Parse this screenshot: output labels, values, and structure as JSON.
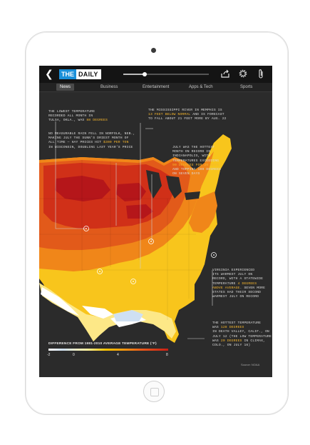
{
  "header": {
    "logo_the": "THE",
    "logo_daily": "DAILY",
    "progress": 0.25
  },
  "nav": {
    "tabs": [
      {
        "label": "News",
        "active": true
      },
      {
        "label": "Business",
        "active": false
      },
      {
        "label": "Entertainment",
        "active": false
      },
      {
        "label": "Apps & Tech",
        "active": false
      },
      {
        "label": "Sports",
        "active": false
      }
    ]
  },
  "icons": {
    "back": "back-arrow-icon",
    "share": "share-icon",
    "settings": "gear-icon",
    "clip": "paperclip-icon",
    "home": "home-button-icon"
  },
  "annotations": {
    "tulsa": {
      "lines": [
        "THE LOWEST TEMPERATURE",
        "RECORDED ALL MONTH IN",
        "TULSA, OKLA., WAS "
      ],
      "highlight": "88 DEGREES"
    },
    "norfolk": {
      "lines": [
        "NO MEASURABLE RAIN FELL IN NORFOLK, NEB.,",
        "MAKING JULY THE SUNN'S DRIEST MONTH OF",
        "ALL TIME — HAY PRICES HIT "
      ],
      "highlight": "$300 PER TON",
      "tail": "IN WISCONSIN, DOUBLING LAST YEAR'S PRICE"
    },
    "mississippi": {
      "lines": [
        "THE MISSISSIPPI RIVER IN MEMPHIS IS"
      ],
      "highlight": "13 FEET BELOW NORMAL",
      "tail_lines": [
        " AND IS FORECAST",
        "TO FALL ABOUT 21 FEET MORE BY AUG. 22"
      ]
    },
    "indianapolis": {
      "lines": [
        "JULY WAS THE HOTTEST",
        "MONTH ON RECORD IN",
        "INDIANAPOLIS, WITH",
        "TEMPERATURES EXCEEDING"
      ],
      "highlight": "90 DEGREES FOR 20 DAYS",
      "tail_lines": [
        "AND TOPPING 100 DEGREES",
        "ON SEVEN DAYS"
      ]
    },
    "virginia": {
      "lines": [
        "VIRGINIA EXPERIENCED",
        "ITS WARMEST JULY ON",
        "RECORD, WITH A STATEWIDE",
        "TEMPERATURE "
      ],
      "highlight1": "4 DEGREES",
      "highlight2": "ABOVE AVERAGE",
      "tail_lines": [
        ". SEVEN MORE",
        "STATES HAD THEIR SECOND",
        "WARMEST JULY ON RECORD"
      ]
    },
    "death_valley": {
      "lines": [
        "THE HOTTEST TEMPERATURE",
        "WAS "
      ],
      "highlight1": "128 DEGREES",
      "mid_lines": [
        "IN DEATH VALLEY, CALIF., ON",
        "JULY 12 (THE LOW TEMPERATURE",
        "WAS "
      ],
      "highlight2": "20 DEGREES",
      "tail_lines": [
        " IN CLIMAX,",
        "COLO., ON JULY 16)"
      ]
    }
  },
  "legend": {
    "title": "DIFFERENCE FROM 1981-2010 AVERAGE TEMPERATURE (°F)",
    "ticks": [
      "-2",
      "0",
      "4",
      "8"
    ],
    "source": "Source: NOAA"
  },
  "colors": {
    "accent_blue": "#1a8fd8",
    "highlight": "#f5b52c",
    "screen_bg": "#2b2b2b"
  }
}
